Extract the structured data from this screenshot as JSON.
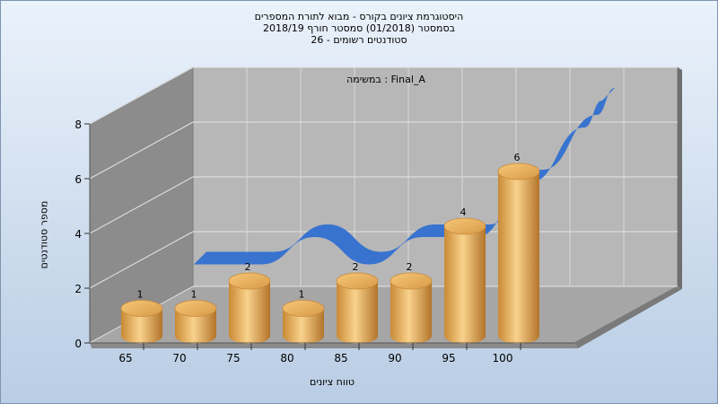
{
  "chart_data": {
    "type": "bar",
    "title_lines": [
      "היסטוגרמת ציונים בקורס - מבוא לתורת המספרים",
      "בסמסטר  (01/2018)  סמסטר חורף 2018/19",
      "סטודנטים רשומים - 26"
    ],
    "annotation": "במשימה : Final_A",
    "xlabel": "טווח ציונים",
    "ylabel": "מספר סטודנטים",
    "categories": [
      "65",
      "70",
      "75",
      "80",
      "85",
      "90",
      "95",
      "100"
    ],
    "values": [
      1,
      1,
      2,
      1,
      2,
      2,
      4,
      6
    ],
    "data_labels": [
      "1",
      "1",
      "2",
      "1",
      "2",
      "2",
      "4",
      "6"
    ],
    "yticks": [
      "0",
      "2",
      "4",
      "6",
      "8"
    ],
    "ylim": [
      0,
      8
    ],
    "trend_line": true,
    "grid": true,
    "colors": {
      "bar_light": "#f6c878",
      "bar_dark": "#b87a2a",
      "trend": "#2f6fd0",
      "back_wall": "#b7b7b7",
      "side_wall": "#8c8c8c",
      "floor": "#a6a6a6"
    }
  }
}
